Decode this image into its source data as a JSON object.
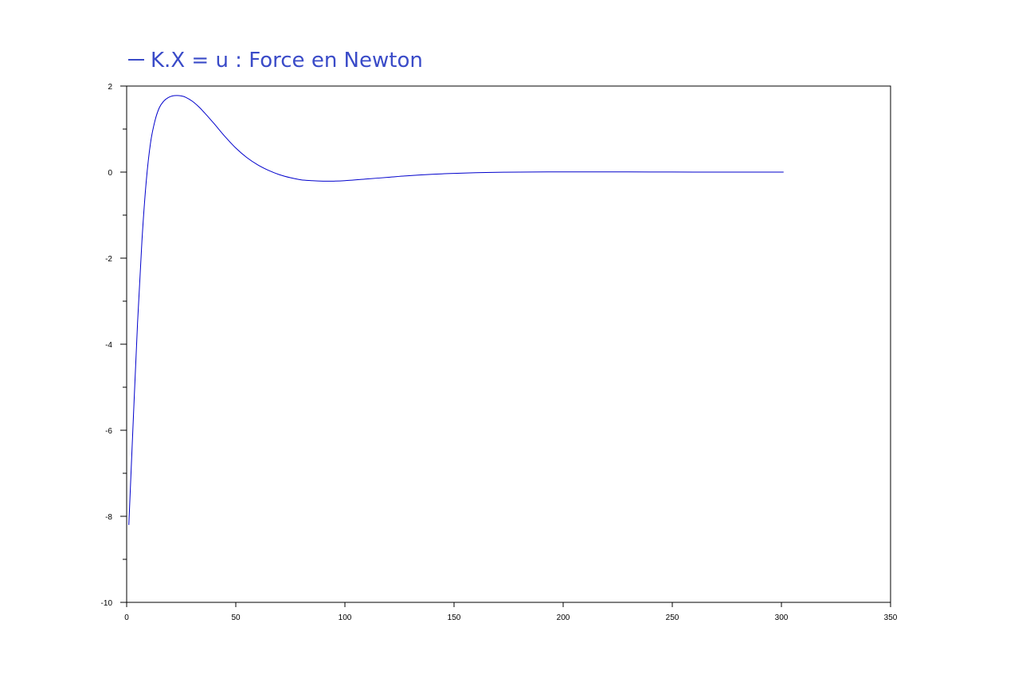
{
  "chart_data": {
    "type": "line",
    "title": "",
    "xlabel": "",
    "ylabel": "",
    "xlim": [
      0,
      350
    ],
    "ylim": [
      -10,
      2
    ],
    "xticks": [
      0,
      50,
      100,
      150,
      200,
      250,
      300,
      350
    ],
    "yticks": [
      2,
      0,
      -2,
      -4,
      -6,
      -8,
      -10
    ],
    "x_tick_labels": [
      "0",
      "50",
      "100",
      "150",
      "200",
      "250",
      "300",
      "350"
    ],
    "y_tick_labels": [
      "2",
      "0",
      "-2",
      "-4",
      "-6",
      "-8",
      "-10"
    ],
    "y_minor_ticks": [
      1,
      -1,
      -3,
      -5,
      -7,
      -9
    ],
    "grid": false,
    "legend": {
      "placement": "top-left",
      "entries": [
        "K.X = u : Force en Newton"
      ]
    },
    "colors": {
      "series": "#0000cc",
      "legend_text": "#3a4bc8",
      "axes": "#000000",
      "background": "#ffffff"
    },
    "series": [
      {
        "name": "K.X = u : Force en Newton",
        "x": [
          1,
          3,
          5,
          7,
          9,
          11,
          13,
          15,
          17,
          19,
          21,
          23,
          25,
          27,
          30,
          33,
          36,
          40,
          45,
          50,
          55,
          60,
          65,
          70,
          75,
          80,
          85,
          90,
          95,
          100,
          110,
          120,
          130,
          140,
          150,
          160,
          170,
          180,
          200,
          220,
          240,
          260,
          280,
          301
        ],
        "y": [
          -8.2,
          -5.8,
          -3.5,
          -1.6,
          -0.2,
          0.7,
          1.2,
          1.5,
          1.65,
          1.73,
          1.77,
          1.78,
          1.77,
          1.74,
          1.65,
          1.52,
          1.36,
          1.13,
          0.83,
          0.56,
          0.34,
          0.17,
          0.04,
          -0.06,
          -0.13,
          -0.18,
          -0.2,
          -0.21,
          -0.21,
          -0.2,
          -0.16,
          -0.12,
          -0.08,
          -0.05,
          -0.03,
          -0.015,
          -0.005,
          0.0,
          0.005,
          0.005,
          0.003,
          0.001,
          0.0,
          0.0
        ]
      }
    ]
  }
}
